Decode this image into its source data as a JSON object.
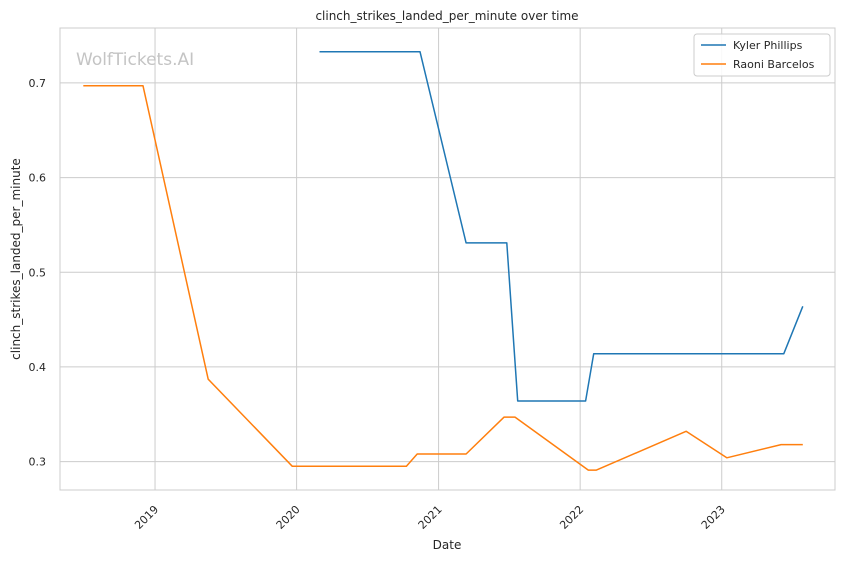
{
  "watermark": "WolfTickets.AI",
  "chart_data": {
    "type": "line",
    "title": "clinch_strikes_landed_per_minute over time",
    "xlabel": "Date",
    "ylabel": "clinch_strikes_landed_per_minute",
    "xlim": [
      "2018-05-01",
      "2023-10-20"
    ],
    "ylim": [
      0.27,
      0.758
    ],
    "x_ticks": [
      "2019-01-01",
      "2020-01-01",
      "2021-01-01",
      "2022-01-01",
      "2023-01-01"
    ],
    "x_tick_labels": [
      "2019",
      "2020",
      "2021",
      "2022",
      "2023"
    ],
    "y_ticks": [
      0.3,
      0.4,
      0.5,
      0.6,
      0.7
    ],
    "y_tick_labels": [
      "0.3",
      "0.4",
      "0.5",
      "0.6",
      "0.7"
    ],
    "grid": true,
    "legend_position": "top-right",
    "series": [
      {
        "name": "Kyler Phillips",
        "color": "#1f77b4",
        "points": [
          [
            "2020-02-29",
            0.733
          ],
          [
            "2020-11-14",
            0.733
          ],
          [
            "2021-03-13",
            0.531
          ],
          [
            "2021-06-26",
            0.531
          ],
          [
            "2021-07-24",
            0.364
          ],
          [
            "2022-01-15",
            0.364
          ],
          [
            "2022-02-05",
            0.414
          ],
          [
            "2023-06-10",
            0.414
          ],
          [
            "2023-07-29",
            0.464
          ]
        ]
      },
      {
        "name": "Raoni Barcelos",
        "color": "#ff7f0e",
        "points": [
          [
            "2018-06-30",
            0.697
          ],
          [
            "2018-12-01",
            0.697
          ],
          [
            "2019-05-18",
            0.387
          ],
          [
            "2019-12-21",
            0.295
          ],
          [
            "2020-10-10",
            0.295
          ],
          [
            "2020-11-07",
            0.308
          ],
          [
            "2021-03-13",
            0.308
          ],
          [
            "2021-06-19",
            0.347
          ],
          [
            "2021-07-17",
            0.347
          ],
          [
            "2022-01-22",
            0.291
          ],
          [
            "2022-02-12",
            0.291
          ],
          [
            "2022-10-01",
            0.332
          ],
          [
            "2023-01-14",
            0.304
          ],
          [
            "2023-06-03",
            0.318
          ],
          [
            "2023-07-29",
            0.318
          ]
        ]
      }
    ]
  }
}
